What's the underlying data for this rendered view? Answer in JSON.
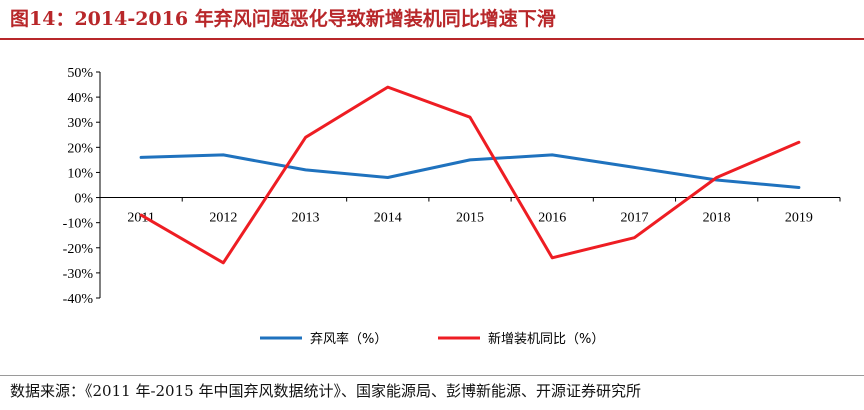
{
  "figure": {
    "title": "图14：2014-2016 年弃风问题恶化导致新增装机同比增速下滑",
    "source": "数据来源：《2011 年-2015 年中国弃风数据统计》、国家能源局、彭博新能源、开源证券研究所"
  },
  "colors": {
    "title": "#b8272a",
    "series_1": "#1f72be",
    "series_2": "#ee1d23"
  },
  "chart_data": {
    "type": "line",
    "x": [
      "2011",
      "2012",
      "2013",
      "2014",
      "2015",
      "2016",
      "2017",
      "2018",
      "2019"
    ],
    "yticks": [
      "50%",
      "40%",
      "30%",
      "20%",
      "10%",
      "0%",
      "-10%",
      "-20%",
      "-30%",
      "-40%"
    ],
    "ylim": [
      -40,
      50
    ],
    "grid": false,
    "legend_position": "bottom",
    "series": [
      {
        "name": "弃风率（%）",
        "values": [
          16,
          17,
          11,
          8,
          15,
          17,
          12,
          7,
          4
        ]
      },
      {
        "name": "新增装机同比（%）",
        "values": [
          -7,
          -26,
          24,
          44,
          32,
          -24,
          -16,
          8,
          22
        ]
      }
    ]
  }
}
